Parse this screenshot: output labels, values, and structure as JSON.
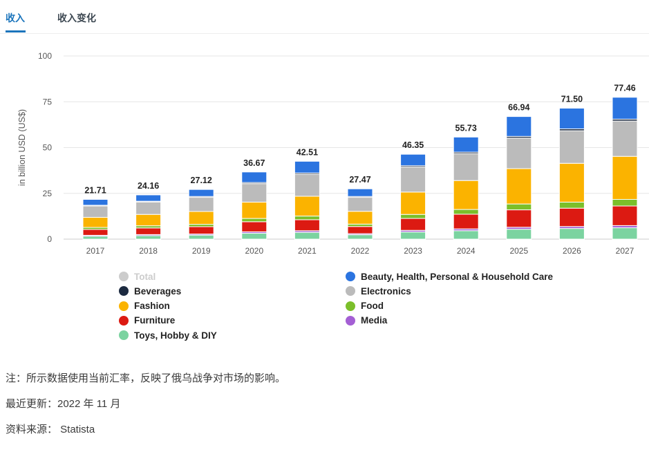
{
  "tabs": {
    "revenue": "收入",
    "revenue_change": "收入变化"
  },
  "chart_data": {
    "type": "bar",
    "stacked": true,
    "ylabel": "in billion USD (US$)",
    "ylim": [
      0,
      100
    ],
    "yticks": [
      0,
      25,
      50,
      75,
      100
    ],
    "grid": true,
    "legend_position": "bottom",
    "categories": [
      "2017",
      "2018",
      "2019",
      "2020",
      "2021",
      "2022",
      "2023",
      "2024",
      "2025",
      "2026",
      "2027"
    ],
    "totals": [
      21.71,
      24.16,
      27.12,
      36.67,
      42.51,
      27.47,
      46.35,
      55.73,
      66.94,
      71.5,
      77.46
    ],
    "total_labels": [
      "21.71",
      "24.16",
      "27.12",
      "36.67",
      "42.51",
      "27.47",
      "46.35",
      "55.73",
      "66.94",
      "71.50",
      "77.46"
    ],
    "series": [
      {
        "name": "Toys, Hobby & DIY",
        "color": "#7bd3a0",
        "values": [
          1.6,
          1.9,
          2.2,
          3.2,
          3.7,
          2.4,
          3.9,
          4.6,
          5.4,
          5.8,
          6.2
        ]
      },
      {
        "name": "Media",
        "color": "#a45fd4",
        "values": [
          0.5,
          0.6,
          0.6,
          0.8,
          0.9,
          0.6,
          0.9,
          1.0,
          1.1,
          1.1,
          1.2
        ]
      },
      {
        "name": "Furniture",
        "color": "#dc1a12",
        "values": [
          3.2,
          3.6,
          4.0,
          5.5,
          6.0,
          3.9,
          6.5,
          8.0,
          9.5,
          10.0,
          10.7
        ]
      },
      {
        "name": "Food",
        "color": "#7bbf2a",
        "values": [
          1.1,
          1.2,
          1.3,
          1.8,
          2.0,
          1.3,
          2.2,
          2.6,
          3.2,
          3.3,
          3.6
        ]
      },
      {
        "name": "Fashion",
        "color": "#fbb300",
        "values": [
          5.5,
          6.2,
          7.0,
          8.9,
          10.8,
          7.0,
          12.2,
          15.8,
          19.3,
          21.2,
          23.5
        ]
      },
      {
        "name": "Electronics",
        "color": "#bbbbbb",
        "values": [
          6.2,
          6.8,
          7.7,
          10.1,
          12.0,
          7.6,
          13.7,
          14.7,
          16.7,
          17.8,
          19.3
        ]
      },
      {
        "name": "Beverages",
        "color": "#1c2a40",
        "values": [
          0.4,
          0.4,
          0.5,
          0.6,
          0.7,
          0.5,
          0.7,
          0.8,
          0.9,
          1.0,
          1.0
        ]
      },
      {
        "name": "Beauty, Health, Personal & Household Care",
        "color": "#2b74e0",
        "values": [
          3.2,
          3.46,
          3.82,
          5.77,
          6.41,
          4.17,
          6.25,
          8.23,
          10.84,
          11.3,
          11.96
        ]
      }
    ],
    "legend": [
      {
        "name": "Total",
        "color": "#cccccc",
        "active": false
      },
      {
        "name": "Beauty, Health, Personal & Household Care",
        "color": "#2b74e0",
        "active": true
      },
      {
        "name": "Beverages",
        "color": "#1c2a40",
        "active": true
      },
      {
        "name": "Electronics",
        "color": "#bbbbbb",
        "active": true
      },
      {
        "name": "Fashion",
        "color": "#fbb300",
        "active": true
      },
      {
        "name": "Food",
        "color": "#7bbf2a",
        "active": true
      },
      {
        "name": "Furniture",
        "color": "#dc1a12",
        "active": true
      },
      {
        "name": "Media",
        "color": "#a45fd4",
        "active": true
      },
      {
        "name": "Toys, Hobby & DIY",
        "color": "#7bd3a0",
        "active": true
      }
    ]
  },
  "notes": {
    "note": "注：所示数据使用当前汇率，反映了俄乌战争对市场的影响。",
    "updated": "最近更新：2022 年 11 月",
    "source": "资料来源：  Statista"
  }
}
